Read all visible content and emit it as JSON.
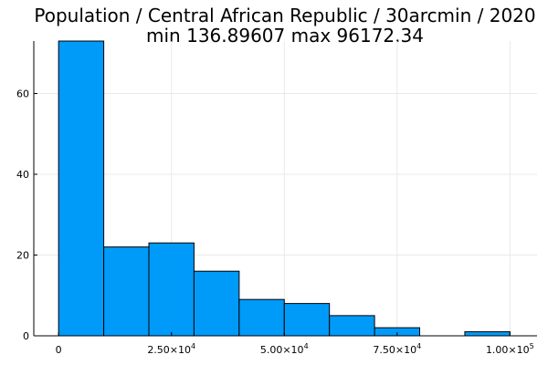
{
  "chart_data": {
    "type": "bar",
    "title_lines": [
      "Population / Central African Republic / 30arcmin / 2020",
      "min 136.89607  max 96172.34"
    ],
    "xlabel": "",
    "ylabel": "",
    "bin_edges": [
      0,
      10000,
      20000,
      30000,
      40000,
      50000,
      60000,
      70000,
      80000,
      90000,
      100000
    ],
    "values": [
      73,
      22,
      23,
      16,
      9,
      8,
      5,
      2,
      0,
      1
    ],
    "xlim": [
      -5500,
      106000
    ],
    "ylim": [
      0,
      73
    ],
    "x_ticks": [
      {
        "value": 0,
        "base": "0",
        "exp": ""
      },
      {
        "value": 25000,
        "base": "2.50×10",
        "exp": "4"
      },
      {
        "value": 50000,
        "base": "5.00×10",
        "exp": "4"
      },
      {
        "value": 75000,
        "base": "7.50×10",
        "exp": "4"
      },
      {
        "value": 100000,
        "base": "1.00×10",
        "exp": "5"
      }
    ],
    "y_ticks": [
      {
        "value": 0,
        "label": "0"
      },
      {
        "value": 20,
        "label": "20"
      },
      {
        "value": 40,
        "label": "40"
      },
      {
        "value": 60,
        "label": "60"
      }
    ],
    "grid": true,
    "legend": "none",
    "bar_color": "#009af9"
  }
}
